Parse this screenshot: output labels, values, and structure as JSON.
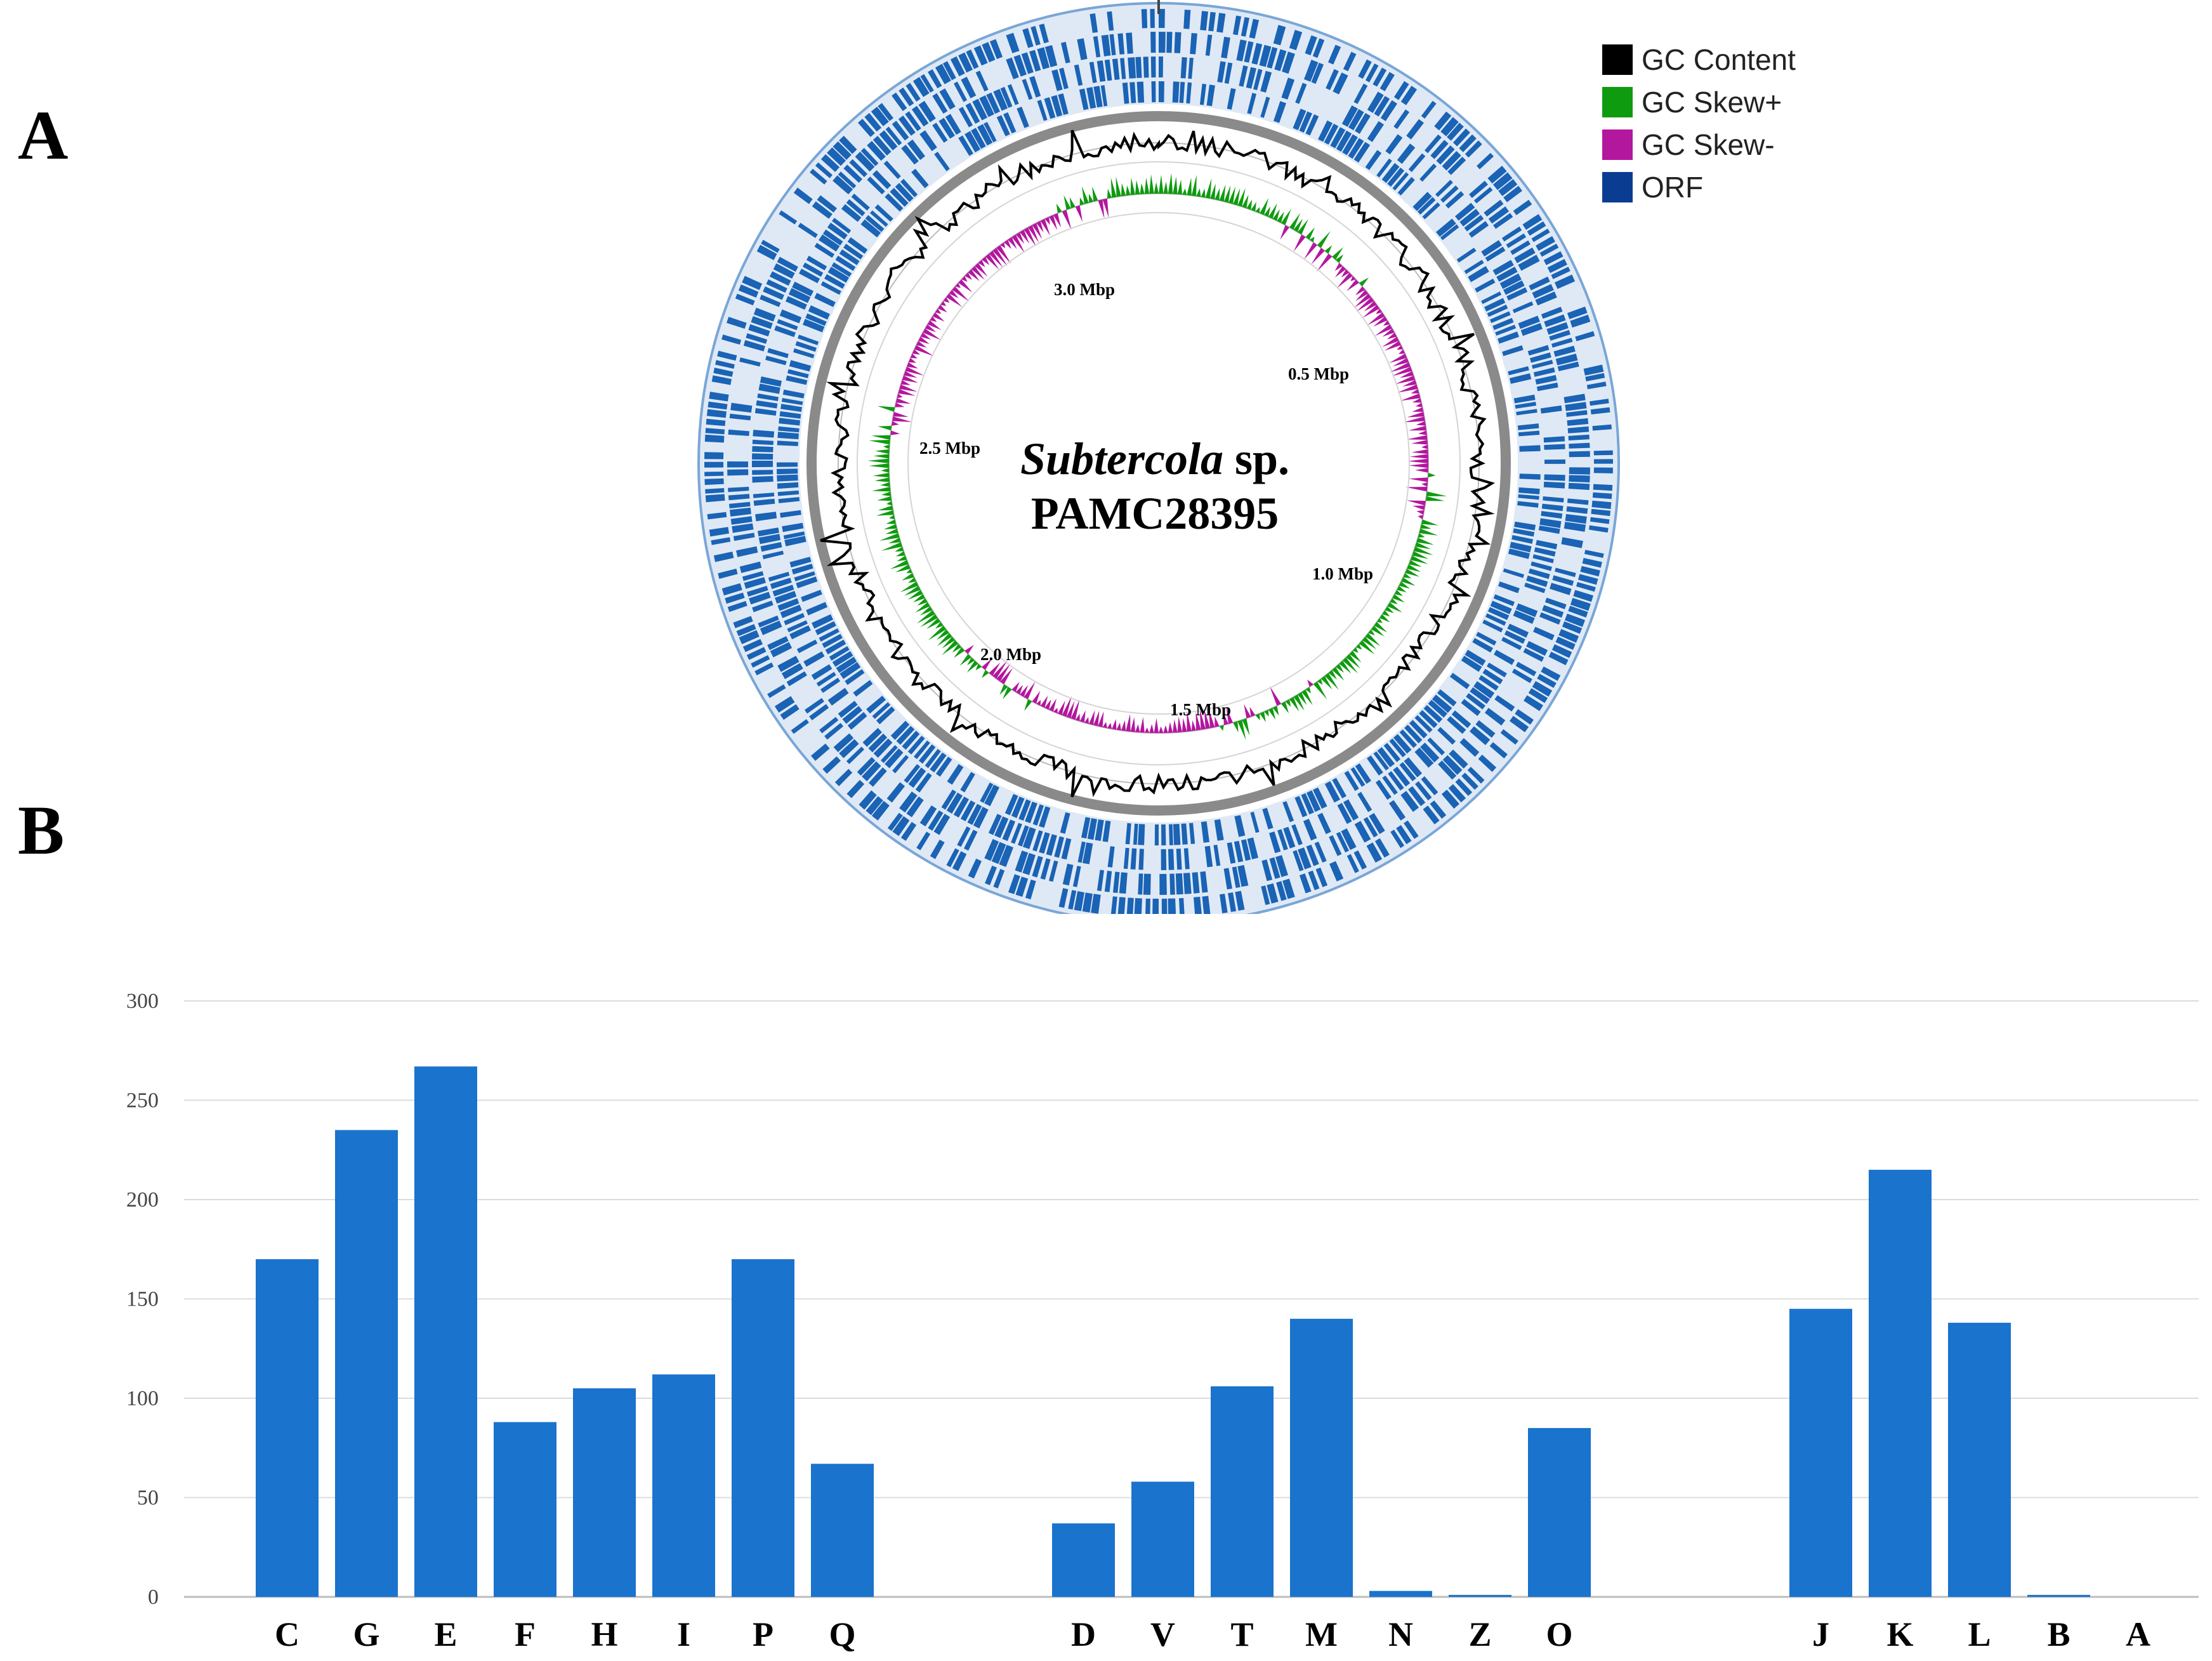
{
  "panels": {
    "a": "A",
    "b": "B"
  },
  "genome_map": {
    "organism_italic": "Subtercola",
    "organism_suffix": " sp.",
    "strain": "PAMC28395",
    "position_labels": [
      "0.5 Mbp",
      "1.0 Mbp",
      "1.5 Mbp",
      "2.0 Mbp",
      "2.5 Mbp",
      "3.0 Mbp"
    ],
    "legend": [
      {
        "label": "GC Content",
        "color": "#000000"
      },
      {
        "label": "GC Skew+",
        "color": "#0f9b0f"
      },
      {
        "label": "GC Skew-",
        "color": "#b3179e"
      },
      {
        "label": "ORF",
        "color": "#0a3d91"
      }
    ],
    "colors": {
      "orf": "#1a63b5",
      "ring_gray": "#8a8a8a",
      "guide": "#d5d5d5"
    }
  },
  "chart_data": {
    "type": "bar",
    "title": "",
    "xlabel": "",
    "ylabel": "",
    "ylim": [
      0,
      300
    ],
    "yticks": [
      0,
      50,
      100,
      150,
      200,
      250,
      300
    ],
    "grid": true,
    "bar_color": "#1a73cc",
    "groups": [
      {
        "categories": [
          "C",
          "G",
          "E",
          "F",
          "H",
          "I",
          "P",
          "Q"
        ],
        "values": [
          170,
          235,
          267,
          88,
          105,
          112,
          170,
          67
        ]
      },
      {
        "categories": [
          "D",
          "V",
          "T",
          "M",
          "N",
          "Z",
          "O"
        ],
        "values": [
          37,
          58,
          106,
          140,
          3,
          1,
          85
        ]
      },
      {
        "categories": [
          "J",
          "K",
          "L",
          "B",
          "A"
        ],
        "values": [
          145,
          215,
          138,
          1,
          0
        ]
      }
    ]
  }
}
